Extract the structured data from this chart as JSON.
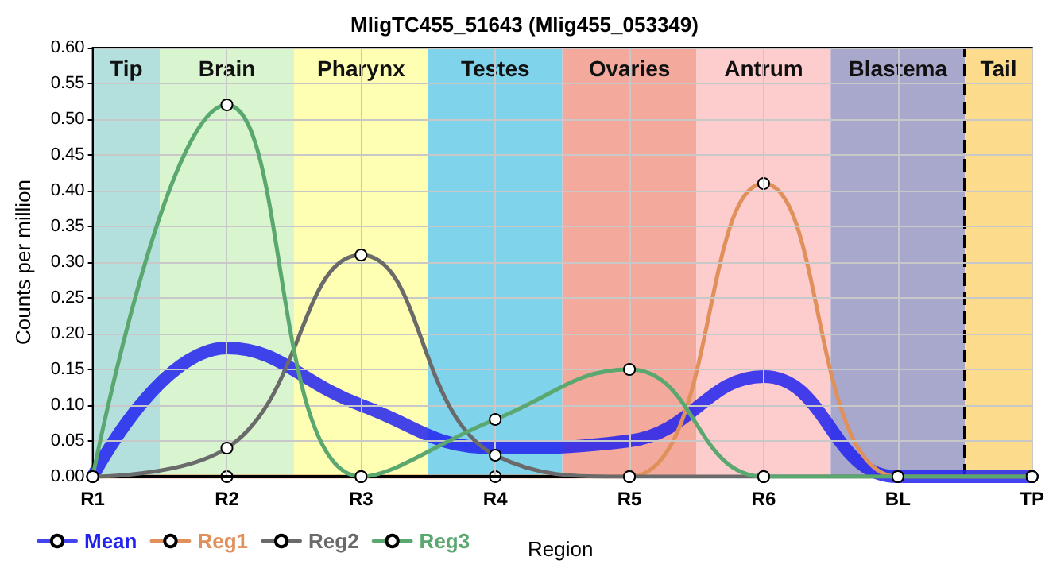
{
  "chart_data": {
    "type": "line",
    "title": "MligTC455_51643 (Mlig455_053349)",
    "xlabel": "Region",
    "ylabel": "Counts per million",
    "categories": [
      "R1",
      "R2",
      "R3",
      "R4",
      "R5",
      "R6",
      "BL",
      "TP"
    ],
    "ylim": [
      0,
      0.6
    ],
    "yticks": [
      {
        "value": 0,
        "label": "0.00"
      },
      {
        "value": 0.05,
        "label": "0.05"
      },
      {
        "value": 0.1,
        "label": "0.10"
      },
      {
        "value": 0.15,
        "label": "0.15"
      },
      {
        "value": 0.2,
        "label": "0.20"
      },
      {
        "value": 0.25,
        "label": "0.25"
      },
      {
        "value": 0.3,
        "label": "0.30"
      },
      {
        "value": 0.35,
        "label": "0.35"
      },
      {
        "value": 0.4,
        "label": "0.40"
      },
      {
        "value": 0.45,
        "label": "0.45"
      },
      {
        "value": 0.5,
        "label": "0.50"
      },
      {
        "value": 0.55,
        "label": "0.55"
      },
      {
        "value": 0.6,
        "label": "0.60"
      }
    ],
    "series": [
      {
        "name": "Mean",
        "color": "#2222ee",
        "marker": "none",
        "values": [
          0,
          0.18,
          0.1,
          0.04,
          0.05,
          0.14,
          0,
          0
        ]
      },
      {
        "name": "Reg1",
        "color": "#e0905a",
        "marker": "circle",
        "values": [
          0,
          0,
          0,
          0,
          0,
          0.41,
          0,
          0
        ]
      },
      {
        "name": "Reg2",
        "color": "#6a6a6a",
        "marker": "circle",
        "values": [
          0,
          0.04,
          0.31,
          0.03,
          0,
          0,
          0,
          0
        ]
      },
      {
        "name": "Reg3",
        "color": "#5aa870",
        "marker": "circle",
        "values": [
          0,
          0.52,
          0,
          0.08,
          0.15,
          0,
          0,
          0
        ]
      }
    ],
    "bands": [
      {
        "axis": "x",
        "from": "R1",
        "to": "R1",
        "label": "Tip",
        "color": "#b3e0dd"
      },
      {
        "axis": "x",
        "from": "R2",
        "to": "R2",
        "label": "Brain",
        "color": "#d9f5cf"
      },
      {
        "axis": "x",
        "from": "R3",
        "to": "R3",
        "label": "Pharynx",
        "color": "#ffffb3"
      },
      {
        "axis": "x",
        "from": "R4",
        "to": "R4",
        "label": "Testes",
        "color": "#7fd3ea"
      },
      {
        "axis": "x",
        "from": "R5",
        "to": "R5",
        "label": "Ovaries",
        "color": "#f3a99c"
      },
      {
        "axis": "x",
        "from": "R6",
        "to": "R6",
        "label": "Antrum",
        "color": "#fdcccc"
      },
      {
        "axis": "x",
        "from": "BL",
        "to": "BL",
        "label": "Blastema",
        "color": "#a8a8cc"
      },
      {
        "axis": "x",
        "from": "TP",
        "to": "TP",
        "label": "Tail",
        "color": "#fddb8c"
      }
    ],
    "ref_lines": [
      {
        "axis": "x",
        "value": "TP",
        "color": "#000000",
        "line_style": "dashed"
      }
    ],
    "grid": true,
    "legend": "bottom left"
  }
}
